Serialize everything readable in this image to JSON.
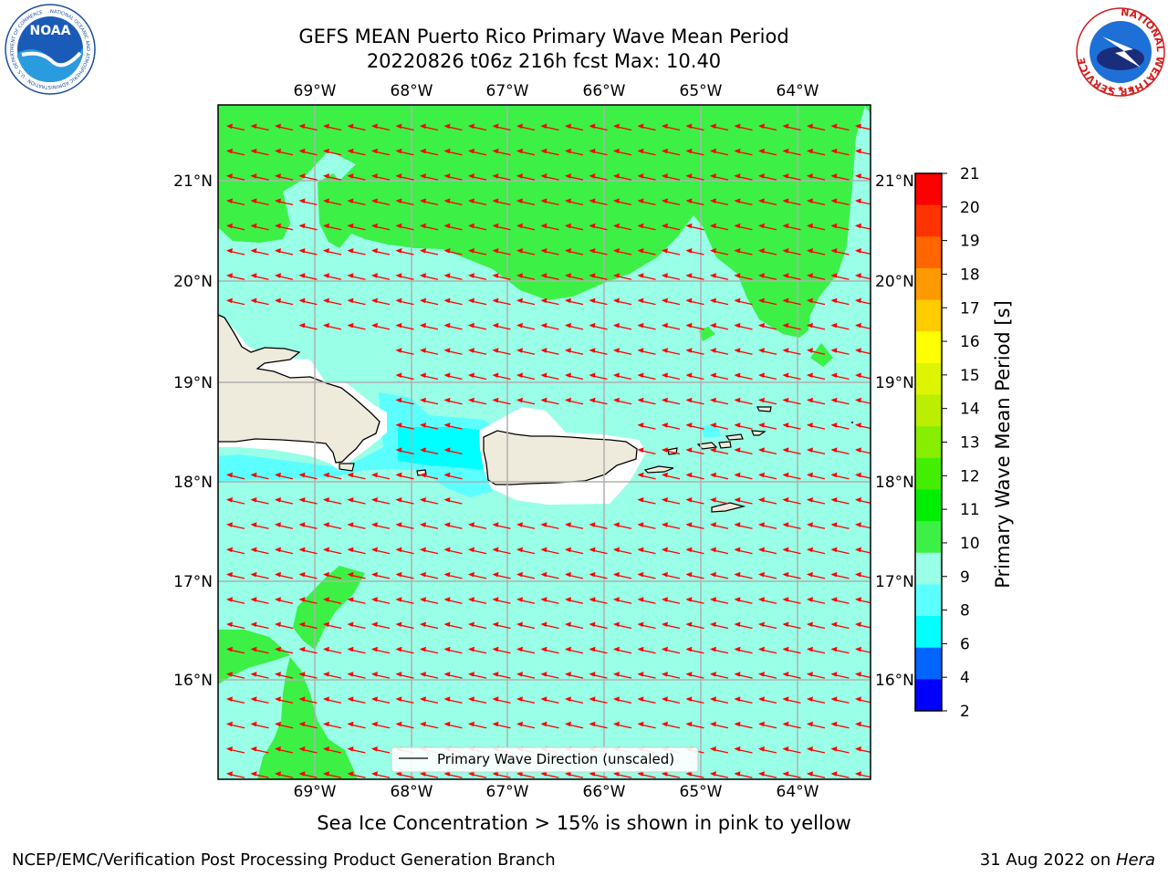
{
  "title": {
    "line1": "GEFS MEAN Puerto Rico Primary Wave Mean Period",
    "line2": "20220826 t06z 216h fcst   Max: 10.40"
  },
  "logos": {
    "left": "noaa-logo",
    "left_text": "NOAA",
    "left_ring_text": "NATIONAL OCEANIC AND ATMOSPHERIC ADMINISTRATION · U.S. DEPARTMENT OF COMMERCE",
    "right": "nws-logo",
    "right_ring_text": "NATIONAL WEATHER SERVICE"
  },
  "map": {
    "lon_labels": [
      "69°W",
      "68°W",
      "67°W",
      "66°W",
      "65°W",
      "64°W"
    ],
    "lat_labels": [
      "21°N",
      "20°N",
      "19°N",
      "18°N",
      "17°N",
      "16°N"
    ],
    "legend_label": "Primary Wave Direction (unscaled)",
    "colors": {
      "ocean_9_10": "#99ffe6",
      "band_10_11": "#3cf046",
      "band_8_9": "#5cffff",
      "band_6_8": "#00ffff",
      "land": "#efebdc",
      "arrow": "#ff0000",
      "grid": "#b0b0b0"
    }
  },
  "colorbar": {
    "label": "Primary Wave Mean Period [s]",
    "ticks": [
      "21",
      "20",
      "19",
      "18",
      "17",
      "16",
      "15",
      "14",
      "13",
      "12",
      "11",
      "10",
      "9",
      "8",
      "6",
      "4",
      "2"
    ],
    "colors": [
      "#ff0000",
      "#ff3300",
      "#ff6600",
      "#ff9900",
      "#ffcc00",
      "#ffff00",
      "#ddf500",
      "#bbee00",
      "#88ee00",
      "#44ee00",
      "#00ee00",
      "#3cf046",
      "#99ffe6",
      "#5cffff",
      "#00ffff",
      "#0066ff",
      "#0000ff"
    ]
  },
  "caption": "Sea Ice Concentration > 15% is shown in pink to yellow",
  "footer": {
    "left": "NCEP/EMC/Verification Post Processing Product Generation Branch",
    "right_date": "31 Aug 2022 on ",
    "right_machine": "Hera"
  }
}
